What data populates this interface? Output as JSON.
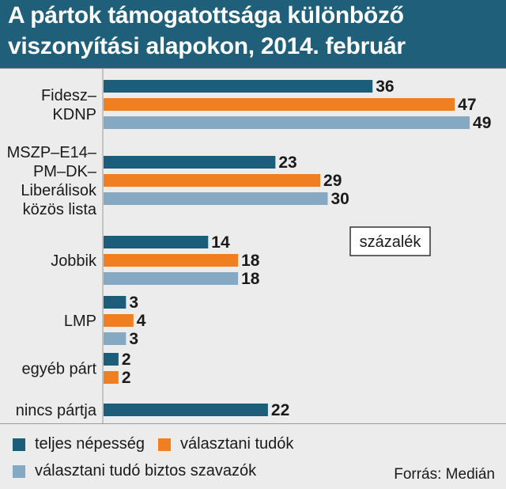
{
  "title": {
    "line1": "A pártok támogatottsága különböző",
    "line2": "viszonyítási alapokon, 2014. február"
  },
  "unit": "százalék",
  "source": "Forrás: Medián",
  "colors": {
    "teljes": "#1c5d7b",
    "valasztani": "#f07f22",
    "biztos": "#86a9c3",
    "title_bg": "#1f5f7a",
    "background": "#ececec"
  },
  "chart_data": {
    "type": "bar",
    "orientation": "horizontal",
    "title": "A pártok támogatottsága különböző viszonyítási alapokon, 2014. február",
    "unit": "százalék",
    "categories": [
      [
        "Fidesz–",
        "KDNP"
      ],
      [
        "MSZP–E14–",
        "PM–DK–",
        "Liberálisok",
        "közös lista"
      ],
      [
        "Jobbik"
      ],
      [
        "LMP"
      ],
      [
        "egyéb párt"
      ],
      [
        "nincs pártja"
      ]
    ],
    "series": [
      {
        "name": "teljes népesség",
        "color": "#1c5d7b",
        "values": [
          36,
          23,
          14,
          3,
          2,
          22
        ]
      },
      {
        "name": "választani tudók",
        "color": "#f07f22",
        "values": [
          47,
          29,
          18,
          4,
          2,
          null
        ]
      },
      {
        "name": "választani tudó biztos szavazók",
        "color": "#86a9c3",
        "values": [
          49,
          30,
          18,
          3,
          null,
          null
        ]
      }
    ],
    "xlim": [
      0,
      50
    ],
    "grid": false,
    "legend_position": "bottom"
  }
}
